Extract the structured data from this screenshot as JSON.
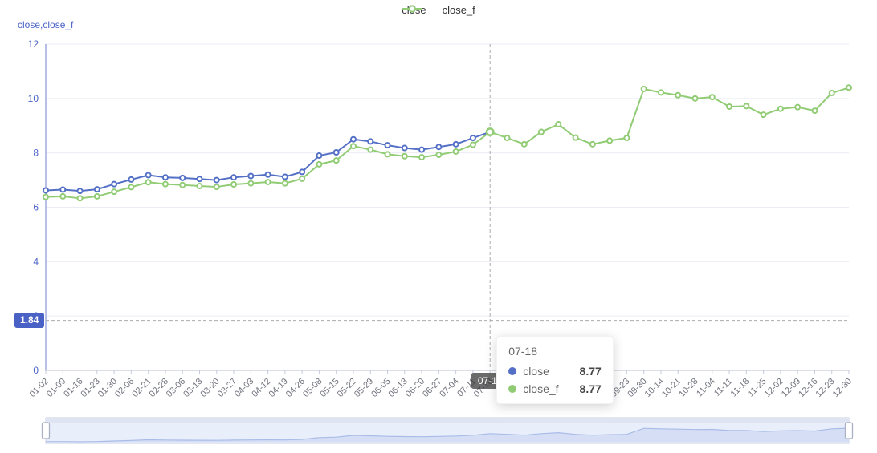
{
  "legend": {
    "items": [
      {
        "label": "close",
        "color": "#5470c6"
      },
      {
        "label": "close_f",
        "color": "#91cc75"
      }
    ]
  },
  "y_axis_name": "close,close_f",
  "markline_label": "1.84",
  "axis_pointer_label": "07-18",
  "tooltip": {
    "title": "07-18",
    "rows": [
      {
        "label": "close",
        "value": "8.77",
        "color": "#5470c6"
      },
      {
        "label": "close_f",
        "value": "8.77",
        "color": "#91cc75"
      }
    ]
  },
  "colors": {
    "close": "#5470c6",
    "close_f": "#91cc75",
    "y_axis_text": "#4b63c8",
    "x_axis_text": "#72747e",
    "grid_line": "#ebedf4",
    "y_axis_line": "#9aa6de",
    "x_axis_line": "#c7cbd9",
    "dashed_line": "#ababab",
    "slider_bg": "#e9eefb",
    "slider_top_band": "#dee4f2",
    "slider_border": "#c9cfe2",
    "slider_area": "#d5def4",
    "slider_line": "#a9bce8",
    "handle_fill": "#ffffff",
    "handle_border": "#a9b0c3"
  },
  "chart_data": {
    "type": "line",
    "title": "",
    "xlabel": "",
    "ylabel": "close,close_f",
    "ylim": [
      0,
      12
    ],
    "y_ticks": [
      0,
      2,
      4,
      6,
      8,
      10,
      12
    ],
    "grid": true,
    "legend_position": "top-center",
    "categories": [
      "01-02",
      "01-09",
      "01-16",
      "01-23",
      "01-30",
      "02-06",
      "02-21",
      "02-28",
      "03-06",
      "03-13",
      "03-20",
      "03-27",
      "04-03",
      "04-12",
      "04-19",
      "04-26",
      "05-08",
      "05-15",
      "05-22",
      "05-29",
      "06-05",
      "06-13",
      "06-20",
      "06-27",
      "07-04",
      "07-11",
      "07-18",
      "",
      "",
      "",
      "",
      "",
      "",
      "09-12",
      "09-23",
      "09-30",
      "10-14",
      "10-21",
      "10-28",
      "11-04",
      "11-11",
      "11-18",
      "11-25",
      "12-02",
      "12-09",
      "12-16",
      "12-23",
      "12-30"
    ],
    "series": [
      {
        "name": "close",
        "color": "#5470c6",
        "symbol": "hollow-circle",
        "values": [
          6.62,
          6.65,
          6.6,
          6.66,
          6.85,
          7.02,
          7.18,
          7.1,
          7.08,
          7.04,
          7.0,
          7.1,
          7.15,
          7.2,
          7.12,
          7.3,
          7.9,
          8.02,
          8.5,
          8.42,
          8.28,
          8.18,
          8.12,
          8.22,
          8.32,
          8.55,
          8.77,
          null,
          null,
          null,
          null,
          null,
          null,
          null,
          null,
          null,
          null,
          null,
          null,
          null,
          null,
          null,
          null,
          null,
          null,
          null,
          null,
          null
        ]
      },
      {
        "name": "close_f",
        "color": "#91cc75",
        "symbol": "hollow-circle",
        "values": [
          6.38,
          6.4,
          6.33,
          6.4,
          6.57,
          6.74,
          6.92,
          6.85,
          6.82,
          6.78,
          6.75,
          6.84,
          6.88,
          6.93,
          6.88,
          7.05,
          7.58,
          7.72,
          8.25,
          8.12,
          7.95,
          7.88,
          7.84,
          7.93,
          8.05,
          8.3,
          8.77,
          8.55,
          8.32,
          8.77,
          9.05,
          8.56,
          8.32,
          8.45,
          8.55,
          10.35,
          10.22,
          10.12,
          10.0,
          10.05,
          9.7,
          9.72,
          9.4,
          9.62,
          9.68,
          9.55,
          10.2,
          10.4
        ]
      }
    ],
    "markline": {
      "y": 1.84,
      "label": "1.84"
    },
    "crosshair": {
      "category_index": 26,
      "label": "07-18",
      "close": 8.77,
      "close_f": 8.77
    },
    "datazoom": {
      "enabled": true,
      "range": "full"
    }
  }
}
